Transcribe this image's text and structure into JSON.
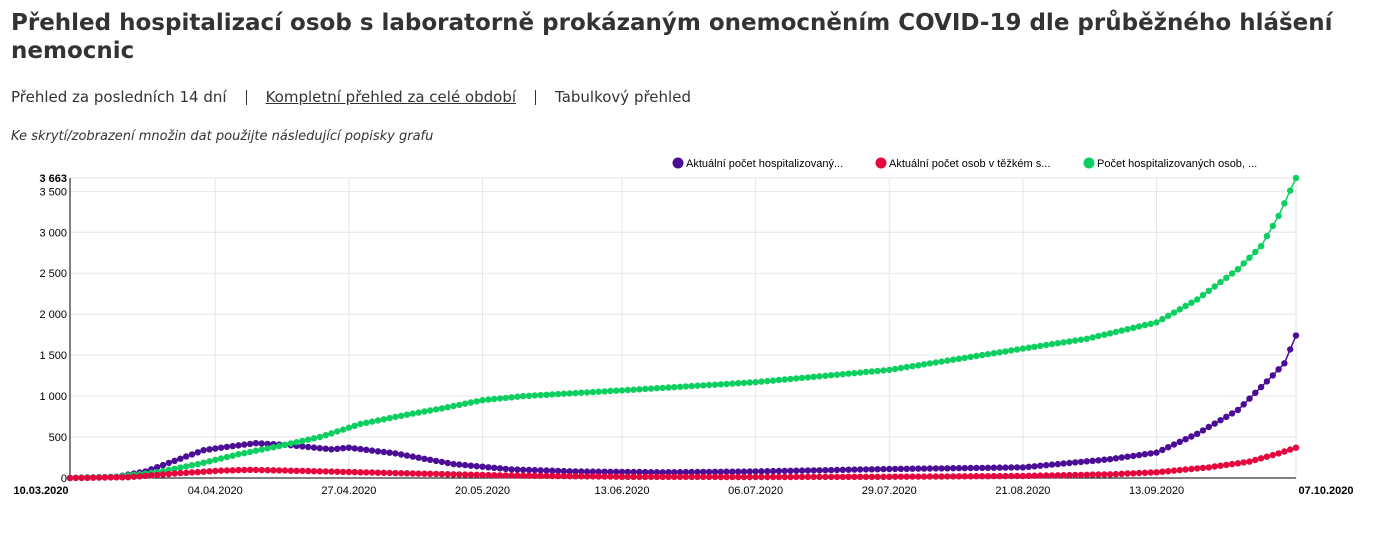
{
  "page": {
    "title": "Přehled hospitalizací osob s laboratorně prokázaným onemocněním COVID-19 dle průběžného hlášení nemocnic",
    "views": {
      "last14": "Přehled za posledních 14 dní",
      "full": "Kompletní přehled za celé období",
      "table": "Tabulkový přehled"
    },
    "hint": "Ke skrytí/zobrazení množin dat použijte následující popisky grafu"
  },
  "chart_data": {
    "type": "line",
    "title": "",
    "xlabel": "",
    "ylabel": "",
    "x_start": "10.03.2020",
    "x_end": "07.10.2020",
    "x_ticks": [
      "10.03.2020",
      "04.04.2020",
      "27.04.2020",
      "20.05.2020",
      "13.06.2020",
      "06.07.2020",
      "29.07.2020",
      "21.08.2020",
      "13.09.2020",
      "07.10.2020"
    ],
    "y_ticks": [
      0,
      500,
      1000,
      1500,
      2000,
      2500,
      3000,
      3500,
      3663
    ],
    "y_tick_labels": [
      "0",
      "500",
      "1 000",
      "1 500",
      "2 000",
      "2 500",
      "3 000",
      "3 500",
      "3 663"
    ],
    "ylim": [
      0,
      3663
    ],
    "grid": true,
    "legend_position": "top-right",
    "series": [
      {
        "name": "Aktuální počet hospitalizovaný...",
        "color": "#4b0c96",
        "key_points": [
          {
            "x": "10.03.2020",
            "y": 0
          },
          {
            "x": "18.03.2020",
            "y": 15
          },
          {
            "x": "23.03.2020",
            "y": 80
          },
          {
            "x": "28.03.2020",
            "y": 210
          },
          {
            "x": "02.04.2020",
            "y": 340
          },
          {
            "x": "07.04.2020",
            "y": 390
          },
          {
            "x": "11.04.2020",
            "y": 425
          },
          {
            "x": "17.04.2020",
            "y": 400
          },
          {
            "x": "24.04.2020",
            "y": 350
          },
          {
            "x": "27.04.2020",
            "y": 370
          },
          {
            "x": "05.05.2020",
            "y": 300
          },
          {
            "x": "15.05.2020",
            "y": 170
          },
          {
            "x": "25.05.2020",
            "y": 105
          },
          {
            "x": "05.06.2020",
            "y": 80
          },
          {
            "x": "20.06.2020",
            "y": 70
          },
          {
            "x": "06.07.2020",
            "y": 80
          },
          {
            "x": "29.07.2020",
            "y": 110
          },
          {
            "x": "21.08.2020",
            "y": 130
          },
          {
            "x": "05.09.2020",
            "y": 230
          },
          {
            "x": "13.09.2020",
            "y": 310
          },
          {
            "x": "20.09.2020",
            "y": 540
          },
          {
            "x": "27.09.2020",
            "y": 830
          },
          {
            "x": "02.10.2020",
            "y": 1180
          },
          {
            "x": "05.10.2020",
            "y": 1400
          },
          {
            "x": "07.10.2020",
            "y": 1740
          }
        ]
      },
      {
        "name": "Aktuální počet osob v těžkém s...",
        "color": "#e4063c",
        "key_points": [
          {
            "x": "10.03.2020",
            "y": 0
          },
          {
            "x": "20.03.2020",
            "y": 10
          },
          {
            "x": "28.03.2020",
            "y": 55
          },
          {
            "x": "05.04.2020",
            "y": 90
          },
          {
            "x": "10.04.2020",
            "y": 100
          },
          {
            "x": "20.04.2020",
            "y": 85
          },
          {
            "x": "05.05.2020",
            "y": 60
          },
          {
            "x": "25.05.2020",
            "y": 30
          },
          {
            "x": "13.06.2020",
            "y": 15
          },
          {
            "x": "06.07.2020",
            "y": 12
          },
          {
            "x": "29.07.2020",
            "y": 15
          },
          {
            "x": "21.08.2020",
            "y": 25
          },
          {
            "x": "05.09.2020",
            "y": 45
          },
          {
            "x": "13.09.2020",
            "y": 70
          },
          {
            "x": "22.09.2020",
            "y": 130
          },
          {
            "x": "29.09.2020",
            "y": 200
          },
          {
            "x": "04.10.2020",
            "y": 300
          },
          {
            "x": "07.10.2020",
            "y": 370
          }
        ]
      },
      {
        "name": "Počet hospitalizovaných osob, ...",
        "color": "#0ccf5f",
        "key_points": [
          {
            "x": "10.03.2020",
            "y": 0
          },
          {
            "x": "18.03.2020",
            "y": 15
          },
          {
            "x": "25.03.2020",
            "y": 70
          },
          {
            "x": "01.04.2020",
            "y": 170
          },
          {
            "x": "08.04.2020",
            "y": 290
          },
          {
            "x": "15.04.2020",
            "y": 390
          },
          {
            "x": "22.04.2020",
            "y": 500
          },
          {
            "x": "29.04.2020",
            "y": 660
          },
          {
            "x": "06.05.2020",
            "y": 760
          },
          {
            "x": "13.05.2020",
            "y": 850
          },
          {
            "x": "20.05.2020",
            "y": 950
          },
          {
            "x": "27.05.2020",
            "y": 1000
          },
          {
            "x": "13.06.2020",
            "y": 1070
          },
          {
            "x": "06.07.2020",
            "y": 1170
          },
          {
            "x": "29.07.2020",
            "y": 1320
          },
          {
            "x": "21.08.2020",
            "y": 1580
          },
          {
            "x": "01.09.2020",
            "y": 1700
          },
          {
            "x": "13.09.2020",
            "y": 1900
          },
          {
            "x": "20.09.2020",
            "y": 2180
          },
          {
            "x": "27.09.2020",
            "y": 2550
          },
          {
            "x": "01.10.2020",
            "y": 2830
          },
          {
            "x": "04.10.2020",
            "y": 3200
          },
          {
            "x": "07.10.2020",
            "y": 3663
          }
        ]
      }
    ]
  }
}
